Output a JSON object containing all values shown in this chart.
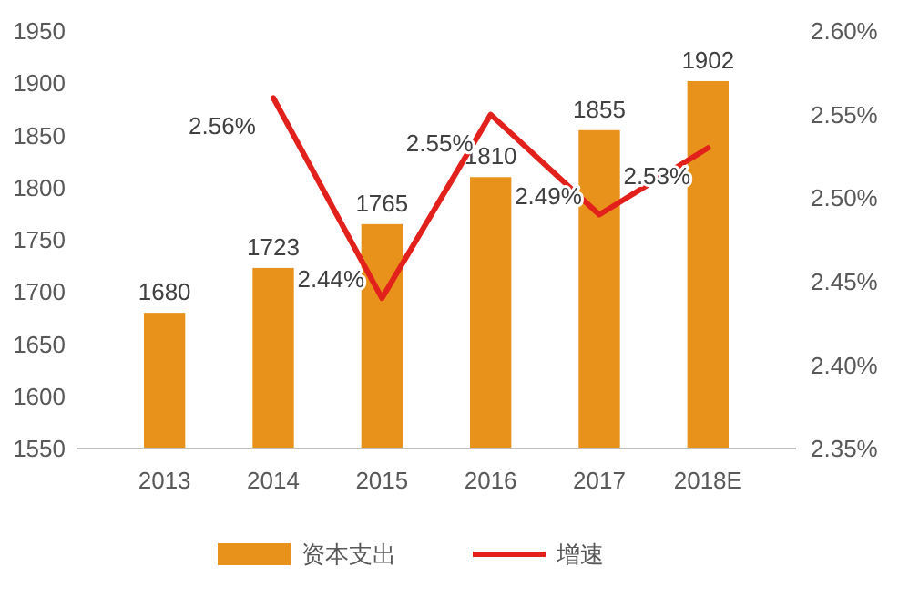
{
  "chart_data": {
    "type": "bar",
    "categories": [
      "2013",
      "2014",
      "2015",
      "2016",
      "2017",
      "2018E"
    ],
    "series": [
      {
        "name": "资本支出",
        "color": "#e8921c",
        "values": [
          1680,
          1723,
          1765,
          1810,
          1855,
          1902
        ],
        "value_labels": [
          "1680",
          "1723",
          "1765",
          "1810",
          "1855",
          "1902"
        ]
      },
      {
        "name": "增速",
        "type": "line",
        "axis": "y2",
        "color": "#e3211c",
        "values": [
          null,
          2.56,
          2.44,
          2.55,
          2.49,
          2.53
        ],
        "value_labels": [
          null,
          "2.56%",
          "2.44%",
          "2.55%",
          "2.49%",
          "2.53%"
        ]
      }
    ],
    "ylim": [
      1550,
      1950
    ],
    "yticks": [
      1550,
      1600,
      1650,
      1700,
      1750,
      1800,
      1850,
      1900,
      1950
    ],
    "y2lim": [
      2.35,
      2.6
    ],
    "y2ticks": [
      {
        "value": 2.35,
        "label": "2.35%"
      },
      {
        "value": 2.4,
        "label": "2.40%"
      },
      {
        "value": 2.45,
        "label": "2.45%"
      },
      {
        "value": 2.5,
        "label": "2.50%"
      },
      {
        "value": 2.55,
        "label": "2.55%"
      },
      {
        "value": 2.6,
        "label": "2.60%"
      }
    ],
    "grid": false,
    "legend": "bottom",
    "marker": "none",
    "line_style": "solid"
  }
}
